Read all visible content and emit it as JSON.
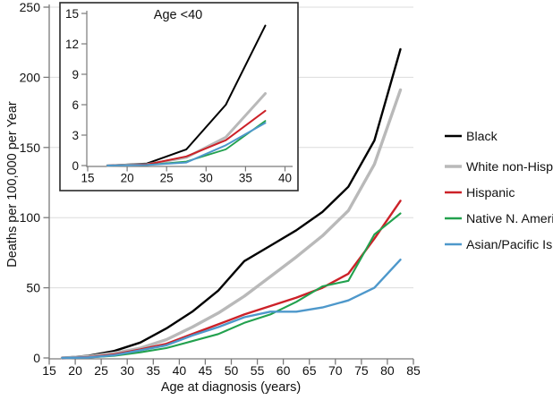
{
  "figure": {
    "y_axis_label": "Deaths per 100,000 per Year",
    "x_axis_label": "Age at diagnosis (years)",
    "inset_title": "Age <40"
  },
  "colors": {
    "black": "#000000",
    "white": "#b9b9b9",
    "hispanic": "#cc2128",
    "native": "#22a14e",
    "asian": "#4e98cb",
    "gridline": "#dcdcdc",
    "axis": "#7a7a7a",
    "inset_border": "#2a2a2a",
    "text": "#111111"
  },
  "legend": [
    {
      "key": "black",
      "label": "Black"
    },
    {
      "key": "white",
      "label": "White non-Hispanic"
    },
    {
      "key": "hispanic",
      "label": "Hispanic"
    },
    {
      "key": "native",
      "label": "Native N. American"
    },
    {
      "key": "asian",
      "label": "Asian/Pacific Island."
    }
  ],
  "chart_data": [
    {
      "type": "line",
      "title": "",
      "xlabel": "Age at diagnosis (years)",
      "ylabel": "Deaths per 100,000 per Year",
      "xlim": [
        15,
        85
      ],
      "ylim": [
        0,
        250
      ],
      "xticks": [
        15,
        20,
        25,
        30,
        35,
        40,
        45,
        50,
        55,
        60,
        65,
        70,
        75,
        80,
        85
      ],
      "yticks": [
        0,
        50,
        100,
        150,
        200,
        250
      ],
      "grid": "horizontal",
      "legend_position": "right",
      "x": [
        17.5,
        22.5,
        27.5,
        32.5,
        37.5,
        42.5,
        47.5,
        52.5,
        57.5,
        62.5,
        67.5,
        72.5,
        77.5,
        82.5
      ],
      "series": [
        {
          "key": "black",
          "name": "Black",
          "values": [
            0,
            1.5,
            5,
            11,
            21,
            33,
            48,
            69,
            80,
            91,
            104,
            122,
            155,
            220
          ]
        },
        {
          "key": "white",
          "name": "White non-Hispanic",
          "values": [
            0,
            1,
            3.5,
            7,
            13,
            22,
            32,
            44,
            58,
            72,
            87,
            105,
            138,
            191
          ]
        },
        {
          "key": "hispanic",
          "name": "Hispanic",
          "values": [
            0,
            0.5,
            2.5,
            6,
            10,
            17,
            24,
            31,
            37,
            43,
            50,
            60,
            85,
            112
          ]
        },
        {
          "key": "native",
          "name": "Native N. American",
          "values": [
            0,
            0.3,
            1.5,
            4,
            7,
            12,
            17,
            25,
            31,
            40,
            51,
            55,
            88,
            103
          ]
        },
        {
          "key": "asian",
          "name": "Asian/Pacific Island.",
          "values": [
            0,
            0.3,
            2,
            5.5,
            9,
            16,
            22,
            29,
            33,
            33,
            36,
            41,
            50,
            70
          ]
        }
      ]
    },
    {
      "type": "line",
      "title": "Age <40",
      "xlabel": "",
      "ylabel": "",
      "xlim": [
        15,
        40
      ],
      "ylim": [
        0,
        15
      ],
      "xticks": [
        15,
        20,
        25,
        30,
        35,
        40
      ],
      "yticks": [
        0,
        3,
        6,
        9,
        12,
        15
      ],
      "grid": "off",
      "x": [
        17.5,
        22.5,
        27.5,
        32.5,
        37.5
      ],
      "series": [
        {
          "key": "black",
          "name": "Black",
          "values": [
            0,
            0.2,
            1.6,
            6,
            13.8
          ]
        },
        {
          "key": "white",
          "name": "White non-Hispanic",
          "values": [
            0,
            0.1,
            0.8,
            2.8,
            7.1
          ]
        },
        {
          "key": "hispanic",
          "name": "Hispanic",
          "values": [
            0,
            0.1,
            0.9,
            2.5,
            5.4
          ]
        },
        {
          "key": "native",
          "name": "Native N. American",
          "values": [
            0,
            0.05,
            0.4,
            1.6,
            4.4
          ]
        },
        {
          "key": "asian",
          "name": "Asian/Pacific Island.",
          "values": [
            0,
            0.05,
            0.3,
            2.0,
            4.2
          ]
        }
      ]
    }
  ]
}
